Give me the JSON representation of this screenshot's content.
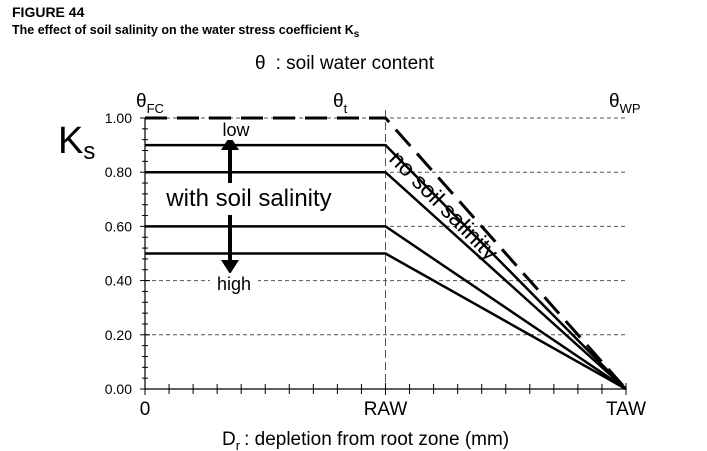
{
  "figure": {
    "label": "FIGURE 44",
    "title_prefix": "The effect of soil salinity on the water stress coefficient K",
    "title_sub": "s"
  },
  "chart_data": {
    "type": "line",
    "top_axis": {
      "symbol": "θ",
      "label": ": soil water content",
      "ticks": [
        {
          "base": "θ",
          "sub": "FC",
          "x": 0
        },
        {
          "base": "θ",
          "sub": "t",
          "x": 1
        },
        {
          "base": "θ",
          "sub": "WP",
          "x": 2
        }
      ]
    },
    "ylabel": {
      "base": "K",
      "sub": "s"
    },
    "xlabel": {
      "base": "D",
      "sub": "r",
      "rest": ": depletion from root zone (mm)"
    },
    "ylim": [
      0,
      1
    ],
    "xlim": [
      0,
      2
    ],
    "y_ticks": [
      "0.00",
      "0.20",
      "0.40",
      "0.60",
      "0.80",
      "1.00"
    ],
    "y_tick_values": [
      0,
      0.2,
      0.4,
      0.6,
      0.8,
      1.0
    ],
    "x_ticks": [
      {
        "label": "0",
        "x": 0
      },
      {
        "label": "RAW",
        "x": 1
      },
      {
        "label": "TAW",
        "x": 2
      }
    ],
    "grid": true,
    "series": [
      {
        "name": "no soil salinity",
        "style": "dashed",
        "points": [
          [
            0,
            1.0
          ],
          [
            1,
            1.0
          ],
          [
            2,
            0.0
          ]
        ]
      },
      {
        "style": "solid",
        "points": [
          [
            0,
            0.9
          ],
          [
            1,
            0.9
          ],
          [
            2,
            0.0
          ]
        ]
      },
      {
        "style": "solid",
        "points": [
          [
            0,
            0.8
          ],
          [
            1,
            0.8
          ],
          [
            2,
            0.0
          ]
        ]
      },
      {
        "style": "solid",
        "points": [
          [
            0,
            0.6
          ],
          [
            1,
            0.6
          ],
          [
            2,
            0.0
          ]
        ]
      },
      {
        "style": "solid",
        "points": [
          [
            0,
            0.5
          ],
          [
            1,
            0.5
          ],
          [
            2,
            0.0
          ]
        ]
      }
    ],
    "annotations": {
      "with_salinity": "with soil salinity",
      "low": "low",
      "high": "high",
      "no_salinity": "no soil salinity"
    },
    "colors": {
      "line": "#000000",
      "grid": "#555555"
    }
  }
}
